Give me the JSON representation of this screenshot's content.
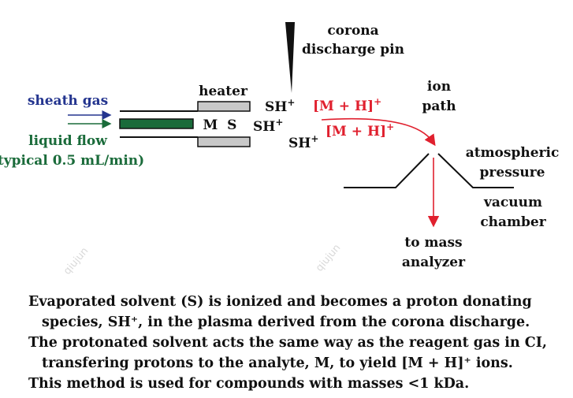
{
  "labels": {
    "corona_line1": "corona",
    "corona_line2": "discharge pin",
    "heater": "heater",
    "ion_path_line1": "ion",
    "ion_path_line2": "path",
    "sheath_gas": "sheath gas",
    "liquid_flow": "liquid flow",
    "flow_rate": "(typical 0.5 mL/min)",
    "ms": "M  S",
    "sh_plus": "SH",
    "mh_ion": "[M + H]",
    "plus": "+",
    "atmospheric_line1": "atmospheric",
    "atmospheric_line2": "pressure",
    "vacuum_line1": "vacuum",
    "vacuum_line2": "chamber",
    "analyzer_line1": "to mass",
    "analyzer_line2": "analyzer"
  },
  "caption": [
    "Evaporated solvent (S) is ionized and becomes a proton donating",
    "species, SH⁺, in the plasma derived from the corona discharge.",
    "The protonated solvent acts the same way as the reagent gas in CI,",
    "transfering protons to the analyte, M, to yield [M + H]⁺ ions.",
    "This method is used for compounds with masses <1 kDa."
  ],
  "watermark": "qiujun",
  "colors": {
    "sheath_gas": "#24358f",
    "liquid_flow": "#1a6b3a",
    "ion": "#e0202e",
    "heater": "#c8c8c8",
    "text": "#111111"
  }
}
